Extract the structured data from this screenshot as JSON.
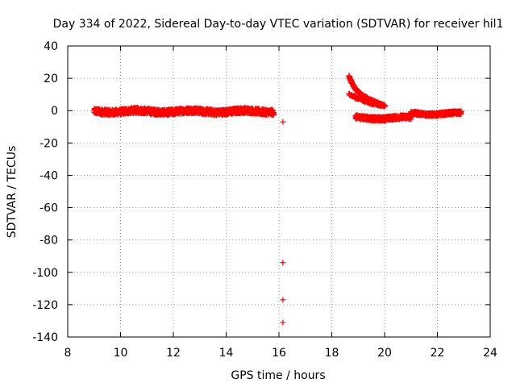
{
  "chart_data": {
    "type": "scatter",
    "title": "Day 334 of 2022, Sidereal Day-to-day VTEC variation (SDTVAR) for receiver hil1",
    "xlabel": "GPS time / hours",
    "ylabel": "SDTVAR / TECUs",
    "xlim": [
      8,
      24
    ],
    "ylim": [
      -140,
      40
    ],
    "xticks": [
      8,
      10,
      12,
      14,
      16,
      18,
      20,
      22,
      24
    ],
    "yticks": [
      40,
      20,
      0,
      -20,
      -40,
      -60,
      -80,
      -100,
      -120,
      -140
    ],
    "grid": true,
    "marker": "+",
    "color": "#ff0000",
    "series": [
      {
        "name": "SDTVAR",
        "segments": [
          {
            "x_start": 9.0,
            "x_end": 15.8,
            "y_center": -0.5,
            "y_spread": 3.5
          },
          {
            "x_start": 18.9,
            "x_end": 21.0,
            "y_center": -4.5,
            "y_spread": 2.5
          },
          {
            "x_start": 21.0,
            "x_end": 22.9,
            "y_center": -1.8,
            "y_spread": 2.0
          }
        ],
        "curves": [
          {
            "points": [
              [
                18.65,
                21
              ],
              [
                18.75,
                17
              ],
              [
                18.9,
                13
              ],
              [
                19.1,
                10
              ],
              [
                19.4,
                7
              ],
              [
                19.7,
                5
              ],
              [
                20.0,
                3
              ]
            ]
          },
          {
            "points": [
              [
                18.65,
                10
              ],
              [
                18.9,
                8
              ],
              [
                19.2,
                6
              ],
              [
                19.5,
                4.5
              ],
              [
                19.8,
                3.5
              ],
              [
                20.0,
                3
              ]
            ]
          }
        ],
        "outliers": [
          [
            16.15,
            -7
          ],
          [
            16.15,
            -94
          ],
          [
            16.15,
            -117
          ],
          [
            16.15,
            -131
          ]
        ]
      }
    ]
  }
}
